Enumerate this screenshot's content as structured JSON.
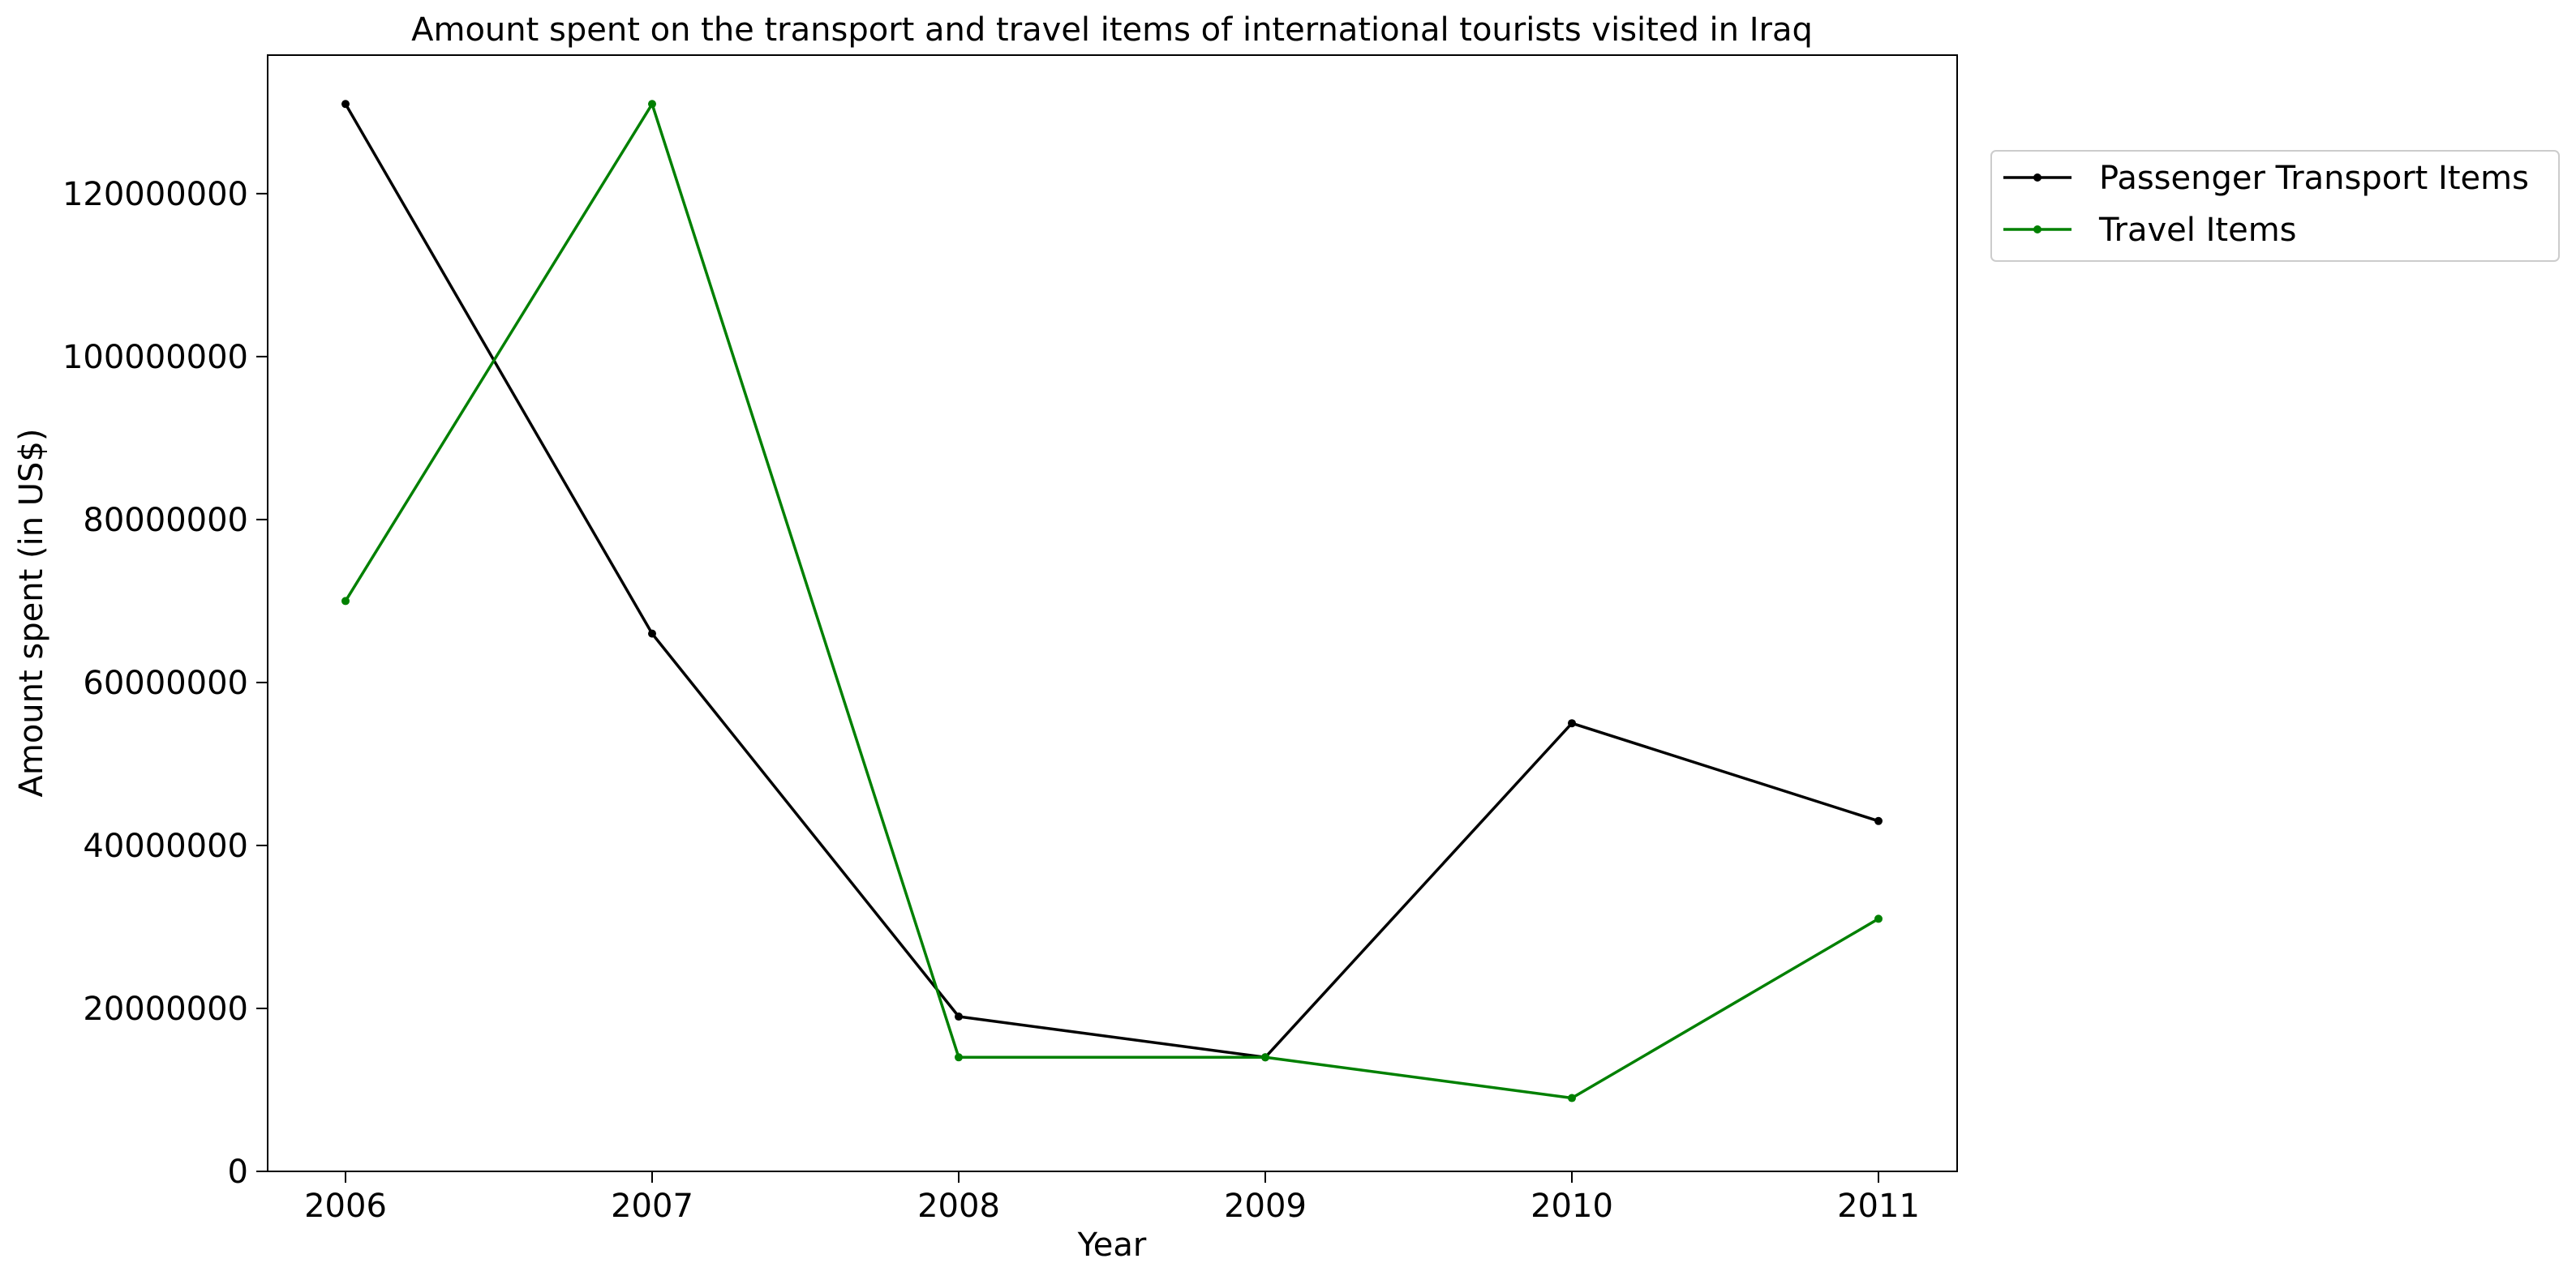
{
  "chart_data": {
    "type": "line",
    "title": "Amount spent on the transport and travel items of international tourists visited in Iraq",
    "xlabel": "Year",
    "ylabel": "Amount spent (in US$)",
    "categories": [
      "2006",
      "2007",
      "2008",
      "2009",
      "2010",
      "2011"
    ],
    "ylim": [
      0,
      137000000
    ],
    "yticks": [
      0,
      20000000,
      40000000,
      60000000,
      80000000,
      100000000,
      120000000
    ],
    "ytick_labels": [
      "0",
      "20000000",
      "40000000",
      "60000000",
      "80000000",
      "100000000",
      "120000000"
    ],
    "grid": false,
    "legend_position": "outside-top-right",
    "series": [
      {
        "name": "Passenger Transport Items",
        "color": "#000000",
        "values": [
          131000000,
          66000000,
          19000000,
          14000000,
          55000000,
          43000000
        ]
      },
      {
        "name": "Travel Items",
        "color": "#008000",
        "values": [
          70000000,
          131000000,
          14000000,
          14000000,
          9000000,
          31000000
        ]
      }
    ]
  }
}
